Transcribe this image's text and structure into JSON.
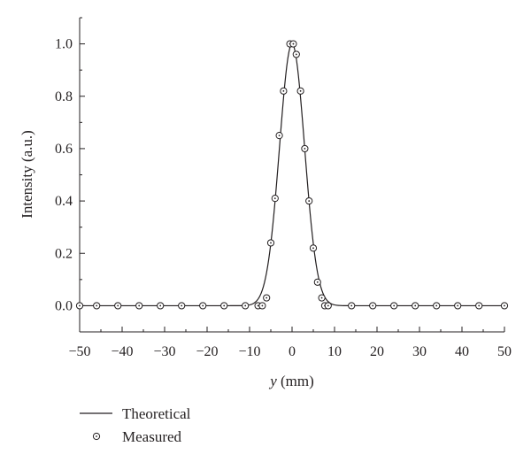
{
  "chart_data": {
    "type": "scatter",
    "title": "",
    "xlabel_var": "y",
    "xlabel_unit": " (mm)",
    "ylabel": "Intensity (a.u.)",
    "xlim": [
      -50,
      50
    ],
    "ylim": [
      -0.1,
      1.1
    ],
    "x_ticks": [
      -50,
      -40,
      -30,
      -20,
      -10,
      0,
      10,
      20,
      30,
      40,
      50
    ],
    "x_tick_labels": [
      "−50",
      "−40",
      "−30",
      "−20",
      "−10",
      "0",
      "10",
      "20",
      "30",
      "40",
      "50"
    ],
    "y_ticks": [
      0.0,
      0.2,
      0.4,
      0.6,
      0.8,
      1.0
    ],
    "y_tick_labels": [
      "0.0",
      "0.2",
      "0.4",
      "0.6",
      "0.8",
      "1.0"
    ],
    "grid": false,
    "legend_position": "below-left",
    "series": [
      {
        "name": "Theoretical",
        "kind": "line",
        "model": "gaussian",
        "center": 0,
        "sigma": 2.95,
        "amplitude": 1.0
      },
      {
        "name": "Measured",
        "kind": "markers",
        "marker": "circle-dot",
        "points": [
          [
            -50,
            0.0
          ],
          [
            -46,
            0.0
          ],
          [
            -41,
            0.0
          ],
          [
            -36,
            0.0
          ],
          [
            -31,
            0.0
          ],
          [
            -26,
            0.0
          ],
          [
            -21,
            0.0
          ],
          [
            -16,
            0.0
          ],
          [
            -11,
            0.0
          ],
          [
            -8,
            0.0
          ],
          [
            -7,
            0.0
          ],
          [
            -6,
            0.03
          ],
          [
            -5,
            0.24
          ],
          [
            -4,
            0.41
          ],
          [
            -3,
            0.65
          ],
          [
            -2,
            0.82
          ],
          [
            -0.5,
            1.0
          ],
          [
            0.3,
            1.0
          ],
          [
            1,
            0.96
          ],
          [
            2,
            0.82
          ],
          [
            3,
            0.6
          ],
          [
            4,
            0.4
          ],
          [
            5,
            0.22
          ],
          [
            6,
            0.09
          ],
          [
            7,
            0.03
          ],
          [
            7.7,
            0.0
          ],
          [
            8.5,
            0.0
          ],
          [
            14,
            0.0
          ],
          [
            19,
            0.0
          ],
          [
            24,
            0.0
          ],
          [
            29,
            0.0
          ],
          [
            34,
            0.0
          ],
          [
            39,
            0.0
          ],
          [
            44,
            0.0
          ],
          [
            50,
            0.0
          ]
        ]
      }
    ]
  }
}
